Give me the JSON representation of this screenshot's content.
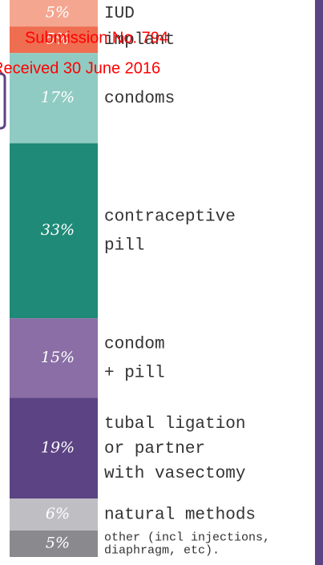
{
  "chart_data": {
    "type": "stacked_bar",
    "categories": [
      [
        "IUD"
      ],
      [
        "implant"
      ],
      [
        "condoms"
      ],
      [
        "contraceptive",
        "pill"
      ],
      [
        "condom",
        "+ pill"
      ],
      [
        "tubal ligation",
        "or partner",
        "with vasectomy"
      ],
      [
        "natural methods"
      ],
      [
        "other (incl injections,",
        "diaphragm, etc)."
      ]
    ],
    "values": [
      5,
      5,
      17,
      33,
      15,
      19,
      6,
      5
    ],
    "value_labels": [
      "5%",
      "5%",
      "17%",
      "33%",
      "15%",
      "19%",
      "6%",
      "5%"
    ],
    "colors": [
      "#f4a690",
      "#ef6d50",
      "#8fcbc3",
      "#1f8a78",
      "#8a6ea5",
      "#5c4383",
      "#bfbfc3",
      "#8a8a8e"
    ],
    "annotations": [
      "Submission No. 794",
      "Received 30 June 2016"
    ]
  }
}
